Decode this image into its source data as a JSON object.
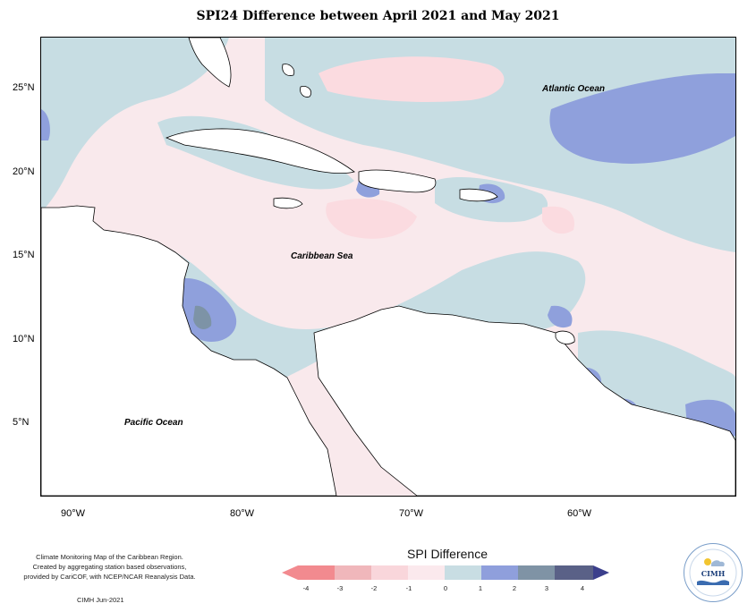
{
  "title": "SPI24 Difference between April 2021 and May 2021",
  "map": {
    "lat_ticks": [
      "25°N",
      "20°N",
      "15°N",
      "10°N",
      "5°N"
    ],
    "lon_ticks": [
      "90°W",
      "80°W",
      "70°W",
      "60°W"
    ],
    "labels": {
      "atlantic": "Atlantic Ocean",
      "caribbean": "Caribbean Sea",
      "pacific": "Pacific Ocean"
    },
    "colors": {
      "bg_near_zero_neg": "#f9e9ec",
      "pale_blue": "#c7dde3",
      "mid_blue": "#8fa0dc",
      "dark_blue": "#7d93a6",
      "pale_pink": "#fbdbe0",
      "land": "#ffffff"
    }
  },
  "credit": {
    "lines": [
      "Climate Monitoring Map of the Caribbean Region.",
      "Created by aggregating station based observations,",
      "provided by CariCOF, with NCEP/NCAR Reanalysis Data."
    ],
    "date": "CIMH  Jun-2021"
  },
  "legend": {
    "title": "SPI Difference",
    "ticks": [
      "-4",
      "-3",
      "-2",
      "-1",
      "0",
      "1",
      "2",
      "3",
      "4"
    ],
    "colors": [
      "#f28a8f",
      "#f0b7bb",
      "#f9d6db",
      "#fbe9ed",
      "#c8dde3",
      "#8f9fdc",
      "#7f93a5",
      "#5a6187",
      "#3b3f8c"
    ]
  },
  "logo": {
    "text": "CIMH"
  }
}
